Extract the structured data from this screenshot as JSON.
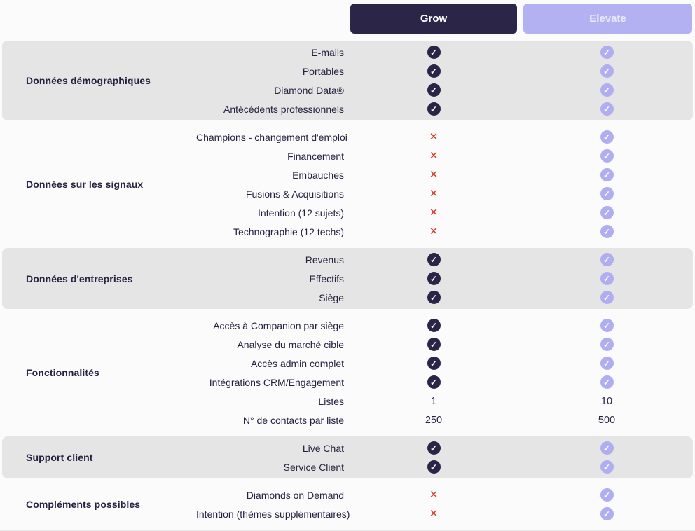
{
  "header": {
    "plans": [
      {
        "id": "grow",
        "label": "Grow",
        "bg": "#2b2548",
        "text_color": "#ffffff"
      },
      {
        "id": "elevate",
        "label": "Elevate",
        "bg": "#b4b1f2",
        "text_color": "#e9e8fb"
      }
    ]
  },
  "icons": {
    "check_glyph": "✓",
    "cross_glyph": "✕",
    "check_grow_color": "#2a2547",
    "check_elevate_color": "#b0adf1",
    "cross_color": "#d93a28"
  },
  "colors": {
    "page_background": "#fbfbfb",
    "shaded_section_background": "#e5e5e5",
    "text": "#262140"
  },
  "sections": [
    {
      "category": "Données démographiques",
      "shaded": true,
      "rows": [
        {
          "label": "E-mails",
          "grow": "check",
          "elevate": "check"
        },
        {
          "label": "Portables",
          "grow": "check",
          "elevate": "check"
        },
        {
          "label": "Diamond Data®",
          "grow": "check",
          "elevate": "check"
        },
        {
          "label": "Antécédents professionnels",
          "grow": "check",
          "elevate": "check"
        }
      ]
    },
    {
      "category": "Données sur les signaux",
      "shaded": false,
      "rows": [
        {
          "label": "Champions - changement d'emploi",
          "grow": "cross",
          "elevate": "check"
        },
        {
          "label": "Financement",
          "grow": "cross",
          "elevate": "check"
        },
        {
          "label": "Embauches",
          "grow": "cross",
          "elevate": "check"
        },
        {
          "label": "Fusions & Acquisitions",
          "grow": "cross",
          "elevate": "check"
        },
        {
          "label": "Intention (12 sujets)",
          "grow": "cross",
          "elevate": "check"
        },
        {
          "label": "Technographie (12 techs)",
          "grow": "cross",
          "elevate": "check"
        }
      ]
    },
    {
      "category": "Données d'entreprises",
      "shaded": true,
      "rows": [
        {
          "label": "Revenus",
          "grow": "check",
          "elevate": "check"
        },
        {
          "label": "Effectifs",
          "grow": "check",
          "elevate": "check"
        },
        {
          "label": "Siège",
          "grow": "check",
          "elevate": "check"
        }
      ]
    },
    {
      "category": "Fonctionnalités",
      "shaded": false,
      "rows": [
        {
          "label": "Accès à Companion par siège",
          "grow": "check",
          "elevate": "check"
        },
        {
          "label": "Analyse du marché cible",
          "grow": "check",
          "elevate": "check"
        },
        {
          "label": "Accès admin complet",
          "grow": "check",
          "elevate": "check"
        },
        {
          "label": "Intégrations CRM/Engagement",
          "grow": "check",
          "elevate": "check"
        },
        {
          "label": "Listes",
          "grow": "1",
          "elevate": "10"
        },
        {
          "label": "N° de contacts par liste",
          "grow": "250",
          "elevate": "500"
        }
      ]
    },
    {
      "category": "Support client",
      "shaded": true,
      "rows": [
        {
          "label": "Live Chat",
          "grow": "check",
          "elevate": "check"
        },
        {
          "label": "Service Client",
          "grow": "check",
          "elevate": "check"
        }
      ]
    },
    {
      "category": "Compléments possibles",
      "shaded": false,
      "rows": [
        {
          "label": "Diamonds on Demand",
          "grow": "cross",
          "elevate": "check"
        },
        {
          "label": "Intention (thèmes supplémentaires)",
          "grow": "cross",
          "elevate": "check"
        }
      ]
    }
  ]
}
